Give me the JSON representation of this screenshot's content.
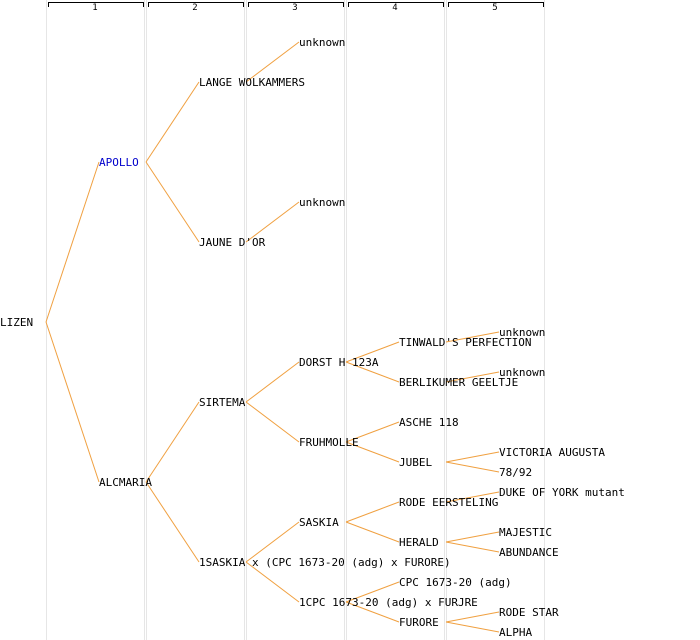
{
  "colors": {
    "edge": "#f0a040",
    "text": "#000000",
    "link": "#0000cc"
  },
  "generations": [
    "1",
    "2",
    "3",
    "4",
    "5"
  ],
  "nodes": {
    "root": "LIZEN",
    "sire": "APOLLO",
    "dam": "ALCMARIA",
    "ss": "LANGE WOLKAMMERS",
    "sd": "JAUNE D'OR",
    "ds": "SIRTEMA",
    "dd": "1SASKIA x (CPC 1673-20 (adg) x FURORE)",
    "ss_unk": "unknown",
    "sd_unk": "unknown",
    "dss": "DORST H 123A",
    "dsd": "FRUHMOLLE",
    "dds": "SASKIA",
    "ddd": "1CPC 1673-20 (adg) x FURJRE",
    "dsss": "TINWALD'S PERFECTION",
    "dssd": "BERLIKUMER GEELTJE",
    "dsds": "ASCHE 118",
    "dsdd": "JUBEL",
    "ddss": "RODE EERSTELING",
    "ddsd": "HERALD",
    "ddds": "CPC 1673-20 (adg)",
    "dddd": "FURORE",
    "dsss_unk": "unknown",
    "dssd_unk": "unknown",
    "dsdd_1": "VICTORIA AUGUSTA",
    "dsdd_2": "78/92",
    "ddss_1": "DUKE OF YORK mutant",
    "ddsd_1": "MAJESTIC",
    "ddsd_2": "ABUNDANCE",
    "dddd_1": "RODE STAR",
    "dddd_2": "ALPHA"
  }
}
